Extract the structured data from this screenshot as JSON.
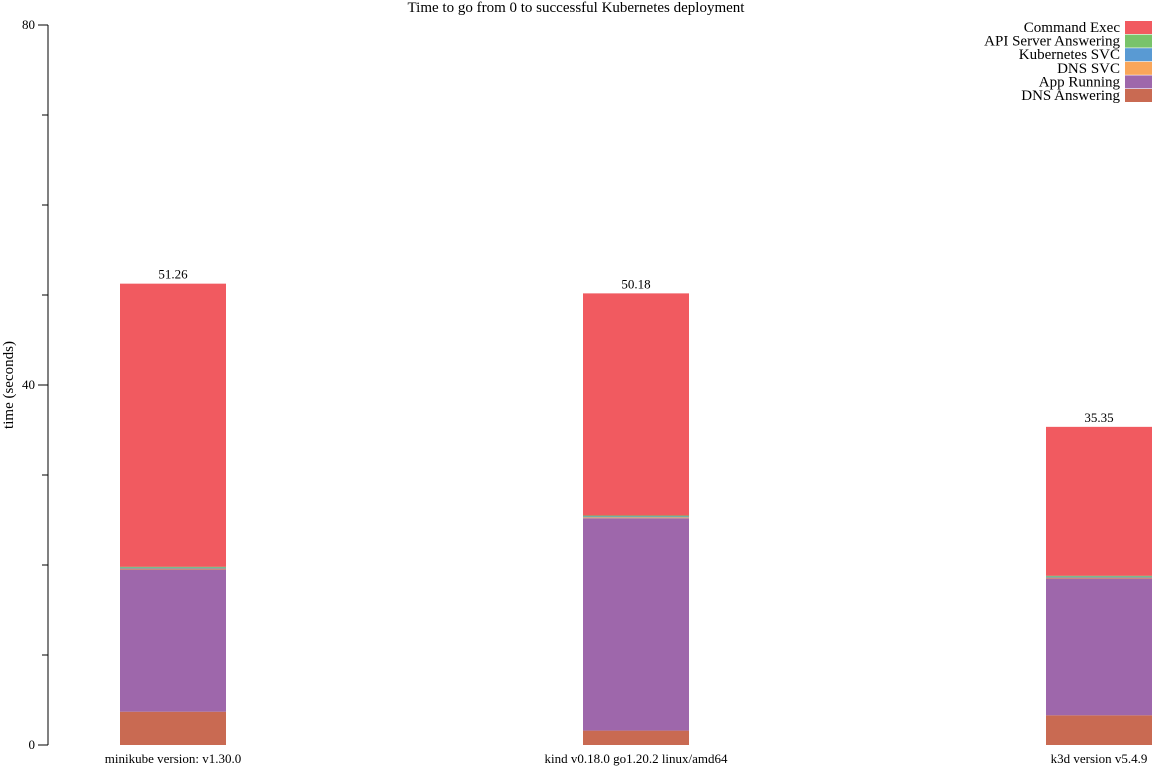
{
  "chart_data": {
    "type": "bar",
    "stacked": true,
    "title": "Time to go from 0 to successful Kubernetes deployment",
    "ylabel": "time (seconds)",
    "xlabel": "",
    "ylim": [
      0,
      80
    ],
    "yticks_labeled": [
      0,
      40,
      80
    ],
    "yticks_minor": [
      10,
      20,
      30,
      50,
      60,
      70
    ],
    "legend_position": "top-right",
    "categories": [
      "minikube version: v1.30.0",
      "kind v0.18.0 go1.20.2 linux/amd64",
      "k3d version v5.4.9"
    ],
    "totals_labels": [
      "51.26",
      "50.18",
      "35.35"
    ],
    "series": [
      {
        "name": "DNS Answering",
        "color": "#c96a52",
        "values": [
          3.7,
          1.6,
          3.3
        ]
      },
      {
        "name": "App Running",
        "color": "#9e67ab",
        "values": [
          15.8,
          23.6,
          15.2
        ]
      },
      {
        "name": "DNS SVC",
        "color": "#f9a65a",
        "values": [
          0.1,
          0.1,
          0.1
        ]
      },
      {
        "name": "Kubernetes SVC",
        "color": "#599ad3",
        "values": [
          0.1,
          0.1,
          0.1
        ]
      },
      {
        "name": "API Server Answering",
        "color": "#79c36a",
        "values": [
          0.1,
          0.1,
          0.1
        ]
      },
      {
        "name": "Command Exec",
        "color": "#f15a60",
        "values": [
          31.46,
          24.68,
          16.55
        ]
      }
    ],
    "legend_order": [
      "Command Exec",
      "API Server Answering",
      "Kubernetes SVC",
      "DNS SVC",
      "App Running",
      "DNS Answering"
    ]
  }
}
